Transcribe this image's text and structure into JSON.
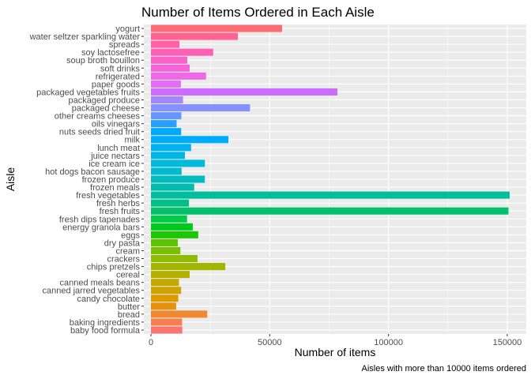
{
  "chart_data": {
    "type": "bar",
    "orientation": "horizontal",
    "title": "Number of Items Ordered in Each Aisle",
    "xlabel": "Number of items",
    "ylabel": "Aisle",
    "caption": "Aisles with more than 10000 items ordered",
    "xlim": [
      -3000,
      158000
    ],
    "xticks": [
      0,
      50000,
      100000,
      150000
    ],
    "xtick_labels": [
      "0",
      "50000",
      "100000",
      "150000"
    ],
    "grid": true,
    "legend": "none",
    "categories": [
      "baby food formula",
      "baking ingredients",
      "bread",
      "butter",
      "candy chocolate",
      "canned jarred vegetables",
      "canned meals beans",
      "cereal",
      "chips pretzels",
      "crackers",
      "cream",
      "dry pasta",
      "eggs",
      "energy granola bars",
      "fresh dips tapenades",
      "fresh fruits",
      "fresh herbs",
      "fresh vegetables",
      "frozen meals",
      "frozen produce",
      "hot dogs bacon sausage",
      "ice cream ice",
      "juice nectars",
      "lunch meat",
      "milk",
      "nuts seeds dried fruit",
      "oils vinegars",
      "other creams cheeses",
      "packaged cheese",
      "packaged produce",
      "packaged vegetables fruits",
      "paper goods",
      "refrigerated",
      "soft drinks",
      "soup broth bouillon",
      "soy lactosefree",
      "spreads",
      "water seltzer sparkling water",
      "yogurt"
    ],
    "values": [
      13200,
      13100,
      23700,
      10600,
      11500,
      12700,
      11800,
      16300,
      31300,
      19600,
      12400,
      11300,
      19900,
      17600,
      15200,
      150500,
      16000,
      151000,
      18200,
      22700,
      12900,
      22700,
      14300,
      16900,
      32600,
      12700,
      10800,
      12800,
      41700,
      13500,
      78500,
      12600,
      23200,
      16300,
      15300,
      26200,
      12000,
      36600,
      55200
    ],
    "colors": [
      "#F8766D",
      "#F67F51",
      "#EF8830",
      "#E6910C",
      "#DC9A00",
      "#CFA200",
      "#C2A900",
      "#B3B000",
      "#A2B600",
      "#8FBB00",
      "#78C000",
      "#59C400",
      "#1BC700",
      "#00C91C",
      "#00CB46",
      "#00C06B",
      "#00C087",
      "#00BE9C",
      "#00BDAE",
      "#00BCBF",
      "#00BBCE",
      "#00B9DB",
      "#00B6E7",
      "#00B2F1",
      "#00ADFA",
      "#00A8FF",
      "#27A0FF",
      "#6498FF",
      "#8690FF",
      "#A287FF",
      "#CB6CFF",
      "#E16EF6",
      "#ED69E8",
      "#F564D9",
      "#FA62C9",
      "#FD61B7",
      "#FF62A4",
      "#FF6490",
      "#FE6B72"
    ]
  }
}
